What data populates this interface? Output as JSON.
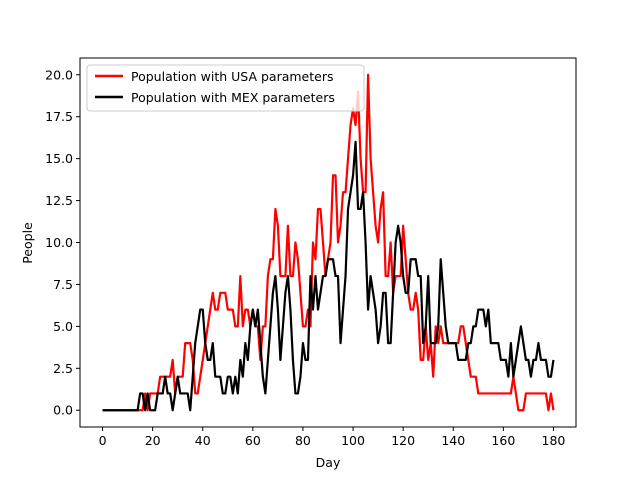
{
  "chart_data": {
    "type": "line",
    "title": "",
    "xlabel": "Day",
    "ylabel": "People",
    "xlim": [
      -9,
      189
    ],
    "ylim": [
      -1,
      21
    ],
    "xticks": [
      0,
      20,
      40,
      60,
      80,
      100,
      120,
      140,
      160,
      180
    ],
    "yticks": [
      0.0,
      2.5,
      5.0,
      7.5,
      10.0,
      12.5,
      15.0,
      17.5,
      20.0
    ],
    "xtick_labels": [
      "0",
      "20",
      "40",
      "60",
      "80",
      "100",
      "120",
      "140",
      "160",
      "180"
    ],
    "ytick_labels": [
      "0.0",
      "2.5",
      "5.0",
      "7.5",
      "10.0",
      "12.5",
      "15.0",
      "17.5",
      "20.0"
    ],
    "grid": false,
    "legend_position": "top-left",
    "series": [
      {
        "name": "Population with USA parameters",
        "color": "#ff0000",
        "x": [
          0,
          1,
          2,
          3,
          4,
          5,
          6,
          7,
          8,
          9,
          10,
          11,
          12,
          13,
          14,
          15,
          16,
          17,
          18,
          19,
          20,
          21,
          22,
          23,
          24,
          25,
          26,
          27,
          28,
          29,
          30,
          31,
          32,
          33,
          34,
          35,
          36,
          37,
          38,
          39,
          40,
          41,
          42,
          43,
          44,
          45,
          46,
          47,
          48,
          49,
          50,
          51,
          52,
          53,
          54,
          55,
          56,
          57,
          58,
          59,
          60,
          61,
          62,
          63,
          64,
          65,
          66,
          67,
          68,
          69,
          70,
          71,
          72,
          73,
          74,
          75,
          76,
          77,
          78,
          79,
          80,
          81,
          82,
          83,
          84,
          85,
          86,
          87,
          88,
          89,
          90,
          91,
          92,
          93,
          94,
          95,
          96,
          97,
          98,
          99,
          100,
          101,
          102,
          103,
          104,
          105,
          106,
          107,
          108,
          109,
          110,
          111,
          112,
          113,
          114,
          115,
          116,
          117,
          118,
          119,
          120,
          121,
          122,
          123,
          124,
          125,
          126,
          127,
          128,
          129,
          130,
          131,
          132,
          133,
          134,
          135,
          136,
          137,
          138,
          139,
          140,
          141,
          142,
          143,
          144,
          145,
          146,
          147,
          148,
          149,
          150,
          151,
          152,
          153,
          154,
          155,
          156,
          157,
          158,
          159,
          160,
          161,
          162,
          163,
          164,
          165,
          166,
          167,
          168,
          169,
          170,
          171,
          172,
          173,
          174,
          175,
          176,
          177,
          178,
          179,
          180
        ],
        "y": [
          0,
          0,
          0,
          0,
          0,
          0,
          0,
          0,
          0,
          0,
          0,
          0,
          0,
          0,
          0,
          0,
          0,
          1,
          0,
          1,
          1,
          1,
          1,
          2,
          2,
          2,
          2,
          2,
          3,
          1,
          2,
          2,
          2,
          4,
          4,
          4,
          3,
          1,
          1,
          2,
          3,
          4,
          5,
          6,
          7,
          6,
          6,
          7,
          7,
          7,
          6,
          6,
          6,
          5,
          5,
          8,
          5,
          6,
          6,
          5,
          6,
          5,
          5,
          3,
          5,
          5,
          8,
          9,
          9,
          12,
          11,
          8,
          8,
          8,
          11,
          8,
          8,
          10,
          9,
          7,
          5,
          5,
          6,
          5,
          10,
          9,
          12,
          12,
          10,
          8,
          9,
          10,
          14,
          14,
          10,
          11,
          13,
          13,
          15,
          17,
          18,
          17,
          19,
          15,
          13,
          13,
          20,
          15,
          13,
          11,
          10,
          12,
          13,
          8,
          8,
          10,
          7,
          8,
          8,
          8,
          11,
          9,
          7,
          6,
          6,
          7,
          6,
          3,
          3,
          5,
          3,
          4,
          2,
          5,
          4,
          5,
          4,
          4,
          4,
          4,
          4,
          4,
          4,
          5,
          5,
          4,
          3,
          2,
          2,
          2,
          1,
          1,
          1,
          1,
          1,
          1,
          1,
          1,
          1,
          1,
          1,
          1,
          1,
          1,
          2,
          1,
          0,
          0,
          0,
          1,
          1,
          1,
          1,
          1,
          1,
          1,
          1,
          1,
          0,
          1,
          0
        ]
      },
      {
        "name": "Population with MEX parameters",
        "color": "#000000",
        "x": [
          0,
          1,
          2,
          3,
          4,
          5,
          6,
          7,
          8,
          9,
          10,
          11,
          12,
          13,
          14,
          15,
          16,
          17,
          18,
          19,
          20,
          21,
          22,
          23,
          24,
          25,
          26,
          27,
          28,
          29,
          30,
          31,
          32,
          33,
          34,
          35,
          36,
          37,
          38,
          39,
          40,
          41,
          42,
          43,
          44,
          45,
          46,
          47,
          48,
          49,
          50,
          51,
          52,
          53,
          54,
          55,
          56,
          57,
          58,
          59,
          60,
          61,
          62,
          63,
          64,
          65,
          66,
          67,
          68,
          69,
          70,
          71,
          72,
          73,
          74,
          75,
          76,
          77,
          78,
          79,
          80,
          81,
          82,
          83,
          84,
          85,
          86,
          87,
          88,
          89,
          90,
          91,
          92,
          93,
          94,
          95,
          96,
          97,
          98,
          99,
          100,
          101,
          102,
          103,
          104,
          105,
          106,
          107,
          108,
          109,
          110,
          111,
          112,
          113,
          114,
          115,
          116,
          117,
          118,
          119,
          120,
          121,
          122,
          123,
          124,
          125,
          126,
          127,
          128,
          129,
          130,
          131,
          132,
          133,
          134,
          135,
          136,
          137,
          138,
          139,
          140,
          141,
          142,
          143,
          144,
          145,
          146,
          147,
          148,
          149,
          150,
          151,
          152,
          153,
          154,
          155,
          156,
          157,
          158,
          159,
          160,
          161,
          162,
          163,
          164,
          165,
          166,
          167,
          168,
          169,
          170,
          171,
          172,
          173,
          174,
          175,
          176,
          177,
          178,
          179,
          180
        ],
        "y": [
          0,
          0,
          0,
          0,
          0,
          0,
          0,
          0,
          0,
          0,
          0,
          0,
          0,
          0,
          0,
          1,
          1,
          0,
          1,
          0,
          0,
          0,
          1,
          1,
          1,
          2,
          1,
          1,
          0,
          1,
          2,
          1,
          1,
          1,
          1,
          0,
          2,
          4,
          5,
          6,
          6,
          4,
          3,
          3,
          4,
          2,
          2,
          2,
          1,
          1,
          2,
          2,
          1,
          2,
          1,
          3,
          2,
          4,
          3,
          5,
          6,
          5,
          6,
          4,
          2,
          1,
          3,
          5,
          7,
          8,
          6,
          3,
          5,
          7,
          8,
          6,
          3,
          1,
          1,
          2,
          4,
          3,
          3,
          8,
          6,
          8,
          6,
          7,
          8,
          8,
          9,
          9,
          9,
          8,
          8,
          4,
          6,
          8,
          12,
          13,
          14,
          16,
          12,
          12,
          13,
          10,
          6,
          8,
          7,
          6,
          4,
          5,
          7,
          7,
          4,
          4,
          7,
          10,
          11,
          10,
          8,
          7,
          7,
          9,
          9,
          9,
          8,
          8,
          4,
          5,
          8,
          4,
          4,
          4,
          5,
          9,
          7,
          5,
          4,
          4,
          4,
          4,
          3,
          3,
          3,
          3,
          4,
          4,
          5,
          5,
          6,
          6,
          6,
          5,
          6,
          4,
          4,
          4,
          4,
          3,
          3,
          3,
          2,
          4,
          2,
          3,
          4,
          5,
          4,
          3,
          3,
          2,
          3,
          3,
          4,
          3,
          3,
          3,
          2,
          2,
          3
        ]
      }
    ]
  }
}
